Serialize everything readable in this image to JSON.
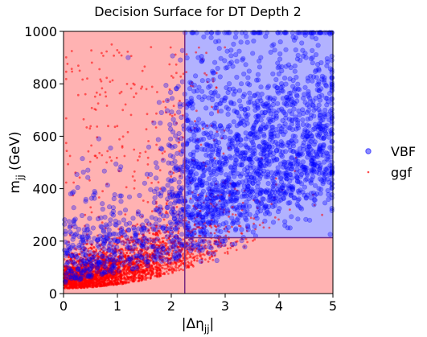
{
  "chart_data": {
    "type": "scatter",
    "title": "Decision Surface for DT Depth 2",
    "xlabel_prefix": "|Δη",
    "xlabel_sub": "jj",
    "xlabel_suffix": "|",
    "ylabel_prefix": "m",
    "ylabel_sub": "jj",
    "ylabel_suffix": " (GeV)",
    "xlim": [
      0,
      5
    ],
    "ylim": [
      0,
      1000
    ],
    "xticks": [
      0,
      1,
      2,
      3,
      4,
      5
    ],
    "yticks": [
      0,
      200,
      400,
      600,
      800,
      1000
    ],
    "legend_position": "right-outside",
    "decision_regions": [
      {
        "class": "ggf",
        "color": "#ffb2b2",
        "x": [
          0,
          2.25
        ],
        "y": [
          0,
          1000
        ]
      },
      {
        "class": "ggf",
        "color": "#ffb2b2",
        "x": [
          2.25,
          5
        ],
        "y": [
          0,
          213
        ]
      },
      {
        "class": "VBF",
        "color": "#b2b2ff",
        "x": [
          2.25,
          5
        ],
        "y": [
          213,
          1000
        ]
      }
    ],
    "split_thresholds": {
      "deta_jj": 2.25,
      "m_jj": 213
    },
    "series": [
      {
        "name": "VBF",
        "color": "#0000ff",
        "marker": "circle-large",
        "sample_points": [
          [
            0.2,
            60
          ],
          [
            0.5,
            120
          ],
          [
            1.0,
            200
          ],
          [
            1.5,
            250
          ],
          [
            1.8,
            320
          ],
          [
            2.3,
            300
          ],
          [
            2.6,
            450
          ],
          [
            3.0,
            350
          ],
          [
            3.2,
            600
          ],
          [
            3.5,
            500
          ],
          [
            3.8,
            420
          ],
          [
            4.0,
            700
          ],
          [
            4.2,
            560
          ],
          [
            4.5,
            900
          ],
          [
            3.3,
            800
          ],
          [
            2.8,
            650
          ],
          [
            3.9,
            950
          ],
          [
            4.7,
            380
          ],
          [
            2.5,
            900
          ],
          [
            1.2,
            900
          ]
        ]
      },
      {
        "name": "ggf",
        "color": "#ff0000",
        "marker": "dot-small",
        "sample_points": [
          [
            0.1,
            20
          ],
          [
            0.3,
            50
          ],
          [
            0.6,
            80
          ],
          [
            0.9,
            60
          ],
          [
            1.2,
            110
          ],
          [
            1.6,
            140
          ],
          [
            2.0,
            180
          ],
          [
            2.4,
            150
          ],
          [
            2.8,
            190
          ],
          [
            3.3,
            230
          ],
          [
            3.7,
            270
          ],
          [
            4.2,
            320
          ],
          [
            0.4,
            300
          ],
          [
            0.8,
            500
          ],
          [
            1.1,
            700
          ],
          [
            0.3,
            850
          ],
          [
            1.8,
            400
          ],
          [
            2.6,
            500
          ],
          [
            3.0,
            420
          ],
          [
            4.8,
            300
          ]
        ]
      }
    ]
  }
}
